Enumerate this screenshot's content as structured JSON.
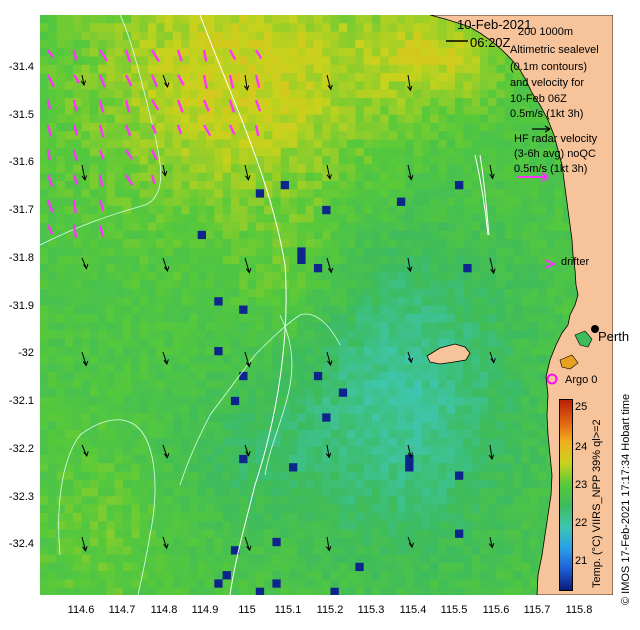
{
  "map": {
    "date": "10-Feb-2021",
    "time": "06:20Z",
    "depth_contours": "200   1000m",
    "sealevel_legend": [
      "Altimetric sealevel",
      "(0.1m contours)",
      "and velocity for",
      "10-Feb 06Z",
      "0.5m/s (1kt 3h)"
    ],
    "hf_legend": [
      "HF radar velocity",
      "(3-6h avg) noQC",
      "0.5m/s (1kt 3h)"
    ],
    "drifter_label": "drifter",
    "argo_label": "Argo 0",
    "city_label": "Perth",
    "colorbar_title": "Temp. (°C) VIIRS_NPP 39% ql>=2",
    "credit": "© IMOS 17-Feb-2021 17:17:34 Hobart time"
  },
  "axes": {
    "x_ticks": [
      "114.6",
      "114.7",
      "114.8",
      "114.9",
      "115",
      "115.1",
      "115.2",
      "115.3",
      "115.4",
      "115.5",
      "115.6",
      "115.7",
      "115.8"
    ],
    "y_ticks": [
      "-31.4",
      "-31.5",
      "-31.6",
      "-31.7",
      "-31.8",
      "-31.9",
      "-32",
      "-32.1",
      "-32.2",
      "-32.3",
      "-32.4"
    ],
    "x_range": [
      114.51,
      115.89
    ],
    "y_range": [
      -32.51,
      -31.3
    ]
  },
  "colorbar": {
    "ticks": [
      "25",
      "24",
      "23",
      "22",
      "21"
    ],
    "range": [
      20.6,
      25.2
    ],
    "colors": [
      "#0a1a7a",
      "#1e5fd8",
      "#2aa0e6",
      "#3ec6b0",
      "#3dbb5e",
      "#57c93a",
      "#c8d21c",
      "#f0b020",
      "#e06010",
      "#b82008"
    ]
  },
  "colors": {
    "land": "#f6c39a",
    "hf_arrow": "#ff33ff",
    "argo": "#ff00ff",
    "contour": "#dcfff0"
  }
}
